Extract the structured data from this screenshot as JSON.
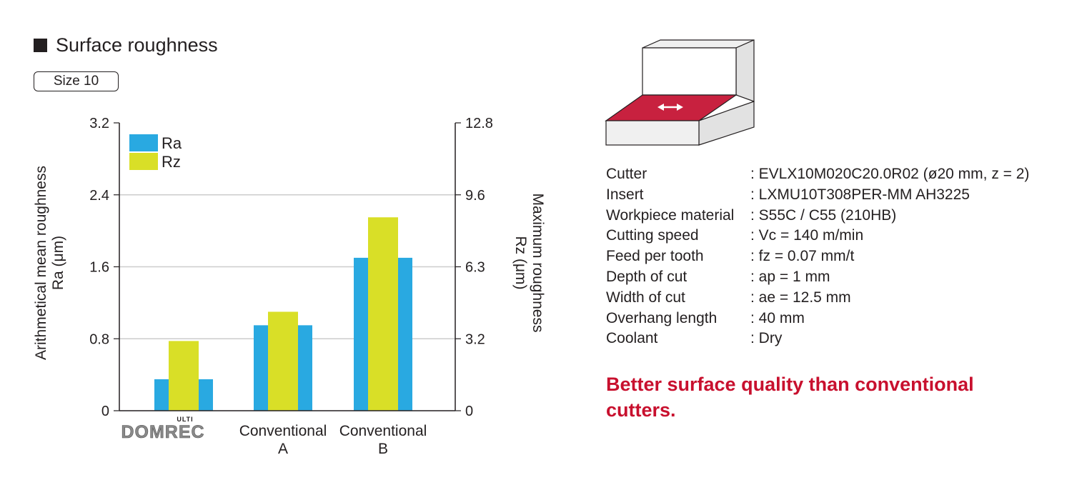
{
  "page": {
    "title": "Surface roughness",
    "size_badge": "Size 10"
  },
  "chart_data": {
    "type": "bar",
    "categories": [
      "DOMREC ULTI",
      "Conventional A",
      "Conventional B"
    ],
    "category_lines": [
      [
        "Conventional",
        "A"
      ],
      [
        "Conventional",
        "B"
      ]
    ],
    "series": [
      {
        "name": "Ra",
        "axis": "left",
        "color": "#29a9e1",
        "values": [
          0.35,
          0.95,
          1.7
        ]
      },
      {
        "name": "Rz",
        "axis": "right",
        "color": "#d9df27",
        "values": [
          3.1,
          4.4,
          8.6
        ]
      }
    ],
    "y_left": {
      "label_lines": [
        "Arithmetical mean roughness",
        "Ra (μm)"
      ],
      "ticks": [
        "0",
        "0.8",
        "1.6",
        "2.4",
        "3.2"
      ],
      "lim": [
        0,
        3.2
      ]
    },
    "y_right": {
      "label_lines": [
        "Maximum roughness",
        "Rz (μm)"
      ],
      "ticks": [
        "0",
        "3.2",
        "6.3",
        "9.6",
        "12.8"
      ],
      "lim": [
        0,
        12.8
      ]
    },
    "legend_position": "top-left",
    "grid": true
  },
  "logo": {
    "main": "DOMREC",
    "sup": "ULTI"
  },
  "specs": [
    {
      "label": "Cutter",
      "value": ": EVLX10M020C20.0R02 (ø20 mm, z = 2)"
    },
    {
      "label": "Insert",
      "value": ": LXMU10T308PER-MM AH3225"
    },
    {
      "label": "Workpiece material",
      "value": ": S55C / C55 (210HB)"
    },
    {
      "label": "Cutting speed",
      "value": ": Vc = 140 m/min"
    },
    {
      "label": "Feed per tooth",
      "value": ": fz = 0.07 mm/t"
    },
    {
      "label": "Depth of cut",
      "value": ": ap = 1 mm"
    },
    {
      "label": "Width of cut",
      "value": ": ae = 12.5 mm"
    },
    {
      "label": "Overhang length",
      "value": ": 40 mm"
    },
    {
      "label": "Coolant",
      "value": ": Dry"
    }
  ],
  "headline": "Better surface quality than conventional cutters.",
  "colors": {
    "accent": "#c8102e",
    "ra": "#29a9e1",
    "rz": "#d9df27",
    "grid": "#cccccc",
    "workpiece_face": "#c8213f"
  }
}
